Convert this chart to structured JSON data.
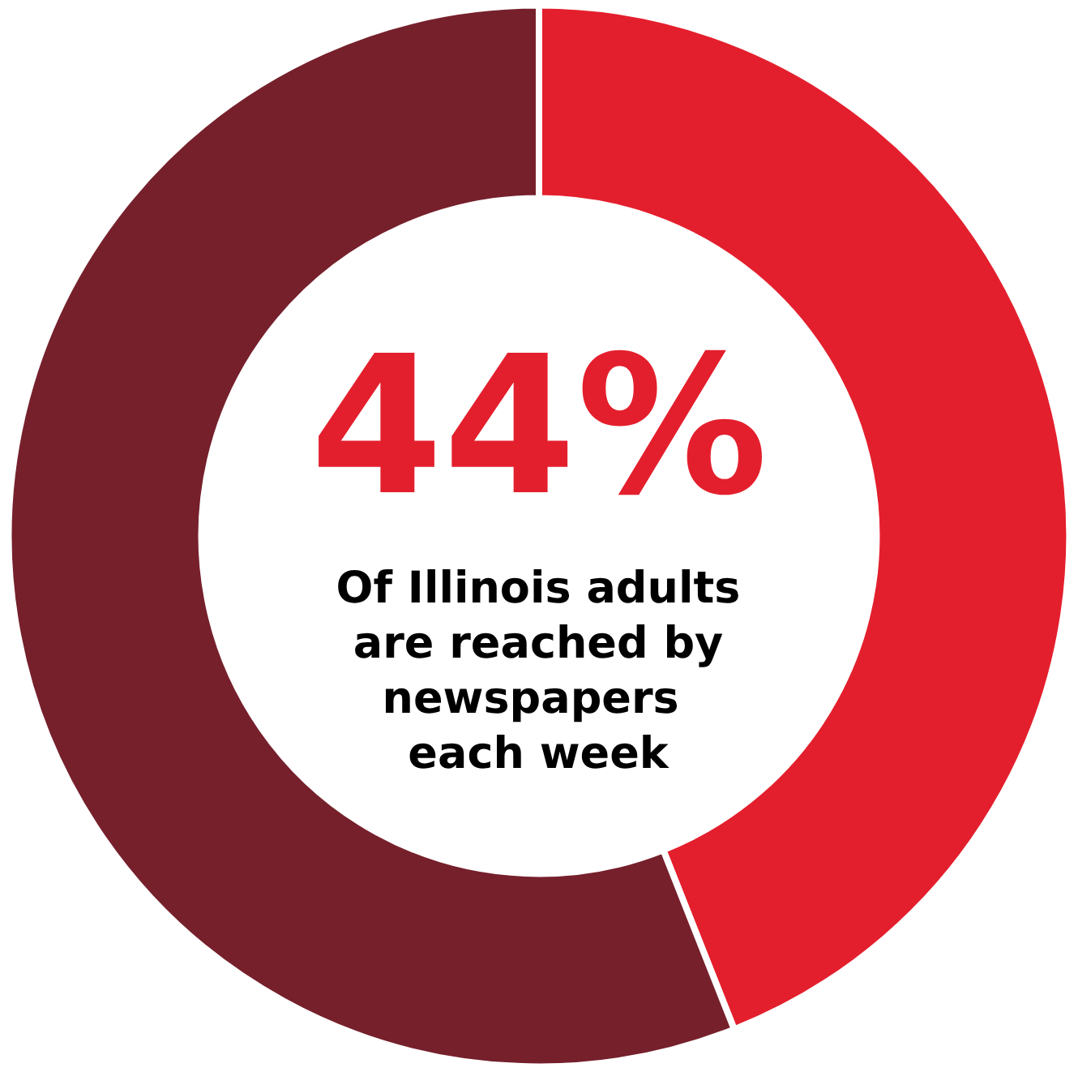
{
  "chart_data": {
    "type": "donut",
    "categories": [
      null,
      null
    ],
    "values": [
      44,
      56
    ],
    "colors": [
      "#e41f2d",
      "#76202c"
    ],
    "value_labels": [
      "44%",
      null
    ],
    "annotations": [
      "Of Illinois adults are reached by newspapers each week"
    ]
  }
}
